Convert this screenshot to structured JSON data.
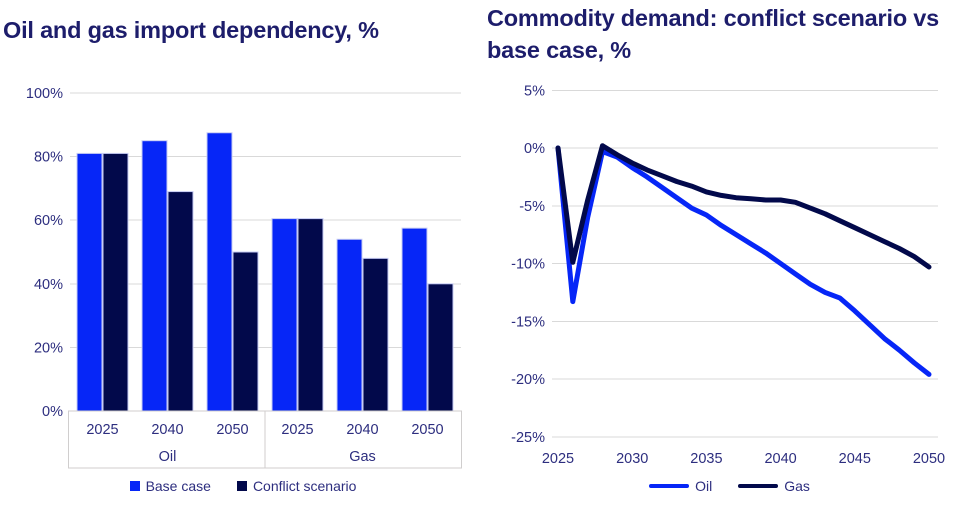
{
  "page": {
    "background": "#ffffff"
  },
  "colors": {
    "blue": "#0626f7",
    "navy": "#02094b",
    "title_text": "#1d1d6b",
    "axis_text": "#2d2e7f",
    "gridline": "#d9d9d9",
    "box_border": "#d0cece",
    "bar_border": "#c7ccf4"
  },
  "chart_data": [
    {
      "type": "bar",
      "title": "Oil and gas import dependency, %",
      "groups": [
        "Oil",
        "Gas"
      ],
      "categories": [
        "2025",
        "2040",
        "2050",
        "2025",
        "2040",
        "2050"
      ],
      "series": [
        {
          "name": "Base case",
          "color": "#0626f7",
          "values": [
            81,
            85,
            87.5,
            60.5,
            54,
            57.5
          ]
        },
        {
          "name": "Conflict scenario",
          "color": "#02094b",
          "values": [
            81,
            69,
            50,
            60.5,
            48,
            40
          ]
        }
      ],
      "ylim": [
        0,
        100
      ],
      "yticks": [
        {
          "v": 0,
          "label": "0%"
        },
        {
          "v": 20,
          "label": "20%"
        },
        {
          "v": 40,
          "label": "40%"
        },
        {
          "v": 60,
          "label": "60%"
        },
        {
          "v": 80,
          "label": "80%"
        },
        {
          "v": 100,
          "label": "100%"
        }
      ],
      "grid": true,
      "legend_position": "bottom"
    },
    {
      "type": "line",
      "title": "Commodity demand: conflict scenario vs base case, %",
      "title_lines": [
        "Commodity demand: conflict scenario vs",
        "base case, %"
      ],
      "x": [
        2025,
        2026,
        2027,
        2028,
        2029,
        2030,
        2031,
        2032,
        2033,
        2034,
        2035,
        2036,
        2037,
        2038,
        2039,
        2040,
        2041,
        2042,
        2043,
        2044,
        2045,
        2046,
        2047,
        2048,
        2049,
        2050
      ],
      "series": [
        {
          "name": "Oil",
          "color": "#0626f7",
          "values": [
            0,
            -13.3,
            -6.0,
            -0.3,
            -0.8,
            -1.7,
            -2.5,
            -3.4,
            -4.3,
            -5.2,
            -5.8,
            -6.7,
            -7.5,
            -8.3,
            -9.1,
            -10.0,
            -10.9,
            -11.8,
            -12.5,
            -13.0,
            -14.1,
            -15.3,
            -16.5,
            -17.5,
            -18.6,
            -19.6
          ]
        },
        {
          "name": "Gas",
          "color": "#02094b",
          "values": [
            0,
            -9.9,
            -4.5,
            0.2,
            -0.6,
            -1.3,
            -1.9,
            -2.4,
            -2.9,
            -3.3,
            -3.8,
            -4.1,
            -4.3,
            -4.4,
            -4.5,
            -4.5,
            -4.7,
            -5.2,
            -5.7,
            -6.3,
            -6.9,
            -7.5,
            -8.1,
            -8.7,
            -9.4,
            -10.3
          ]
        }
      ],
      "xlim": [
        2025,
        2050
      ],
      "ylim": [
        -25,
        5
      ],
      "yticks": [
        {
          "v": 5,
          "label": "5%"
        },
        {
          "v": 0,
          "label": "0%"
        },
        {
          "v": -5,
          "label": "-5%"
        },
        {
          "v": -10,
          "label": "-10%"
        },
        {
          "v": -15,
          "label": "-15%"
        },
        {
          "v": -20,
          "label": "-20%"
        },
        {
          "v": -25,
          "label": "-25%"
        }
      ],
      "xticks": [
        {
          "v": 2025,
          "label": "2025"
        },
        {
          "v": 2030,
          "label": "2030"
        },
        {
          "v": 2035,
          "label": "2035"
        },
        {
          "v": 2040,
          "label": "2040"
        },
        {
          "v": 2045,
          "label": "2045"
        },
        {
          "v": 2050,
          "label": "2050"
        }
      ],
      "grid": true,
      "legend_position": "bottom"
    }
  ]
}
